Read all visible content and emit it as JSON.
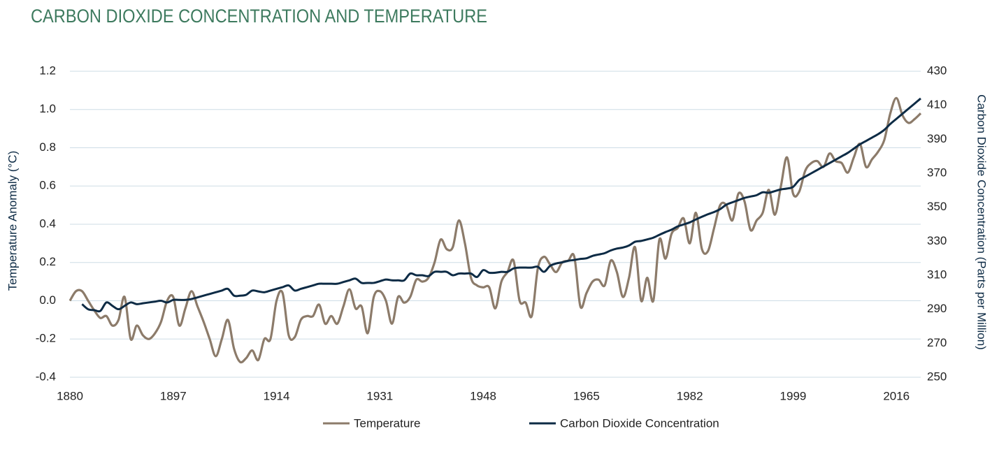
{
  "chart_data": {
    "type": "line",
    "title": "CARBON DIOXIDE CONCENTRATION AND TEMPERATURE",
    "y_label": "Temperature Anomaly (°C)",
    "y2_label": "Carbon Dioxide Concentration (Parts per Million)",
    "x": [
      1880,
      1881,
      1882,
      1883,
      1884,
      1885,
      1886,
      1887,
      1888,
      1889,
      1890,
      1891,
      1892,
      1893,
      1894,
      1895,
      1896,
      1897,
      1898,
      1899,
      1900,
      1901,
      1902,
      1903,
      1904,
      1905,
      1906,
      1907,
      1908,
      1909,
      1910,
      1911,
      1912,
      1913,
      1914,
      1915,
      1916,
      1917,
      1918,
      1919,
      1920,
      1921,
      1922,
      1923,
      1924,
      1925,
      1926,
      1927,
      1928,
      1929,
      1930,
      1931,
      1932,
      1933,
      1934,
      1935,
      1936,
      1937,
      1938,
      1939,
      1940,
      1941,
      1942,
      1943,
      1944,
      1945,
      1946,
      1947,
      1948,
      1949,
      1950,
      1951,
      1952,
      1953,
      1954,
      1955,
      1956,
      1957,
      1958,
      1959,
      1960,
      1961,
      1962,
      1963,
      1964,
      1965,
      1966,
      1967,
      1968,
      1969,
      1970,
      1971,
      1972,
      1973,
      1974,
      1975,
      1976,
      1977,
      1978,
      1979,
      1980,
      1981,
      1982,
      1983,
      1984,
      1985,
      1986,
      1987,
      1988,
      1989,
      1990,
      1991,
      1992,
      1993,
      1994,
      1995,
      1996,
      1997,
      1998,
      1999,
      2000,
      2001,
      2002,
      2003,
      2004,
      2005,
      2006,
      2007,
      2008,
      2009,
      2010,
      2011,
      2012,
      2013,
      2014,
      2015,
      2016,
      2017,
      2018,
      2019,
      2020
    ],
    "series": [
      {
        "name": "Temperature",
        "color": "#8c7b6a",
        "axis": "y",
        "values": [
          0.0,
          0.05,
          0.05,
          0.0,
          -0.05,
          -0.09,
          -0.08,
          -0.13,
          -0.1,
          0.02,
          -0.2,
          -0.13,
          -0.18,
          -0.2,
          -0.17,
          -0.11,
          0.0,
          0.02,
          -0.13,
          -0.04,
          0.05,
          -0.03,
          -0.11,
          -0.2,
          -0.29,
          -0.2,
          -0.1,
          -0.25,
          -0.32,
          -0.3,
          -0.26,
          -0.31,
          -0.2,
          -0.2,
          0.0,
          0.04,
          -0.18,
          -0.19,
          -0.1,
          -0.08,
          -0.08,
          -0.02,
          -0.12,
          -0.08,
          -0.12,
          -0.03,
          0.06,
          -0.04,
          -0.03,
          -0.17,
          0.02,
          0.05,
          0.0,
          -0.12,
          0.02,
          -0.01,
          0.02,
          0.11,
          0.1,
          0.12,
          0.2,
          0.32,
          0.27,
          0.28,
          0.42,
          0.3,
          0.12,
          0.08,
          0.07,
          0.07,
          -0.04,
          0.1,
          0.15,
          0.21,
          0.0,
          -0.01,
          -0.08,
          0.17,
          0.23,
          0.19,
          0.15,
          0.2,
          0.21,
          0.23,
          -0.03,
          0.04,
          0.1,
          0.11,
          0.08,
          0.21,
          0.15,
          0.02,
          0.12,
          0.28,
          0.0,
          0.12,
          0.0,
          0.32,
          0.22,
          0.35,
          0.38,
          0.43,
          0.3,
          0.46,
          0.27,
          0.26,
          0.38,
          0.5,
          0.5,
          0.42,
          0.56,
          0.52,
          0.37,
          0.42,
          0.46,
          0.58,
          0.45,
          0.6,
          0.75,
          0.56,
          0.57,
          0.68,
          0.72,
          0.73,
          0.7,
          0.77,
          0.73,
          0.72,
          0.67,
          0.75,
          0.82,
          0.7,
          0.74,
          0.78,
          0.84,
          0.98,
          1.06,
          0.97,
          0.93,
          0.95,
          0.98
        ]
      },
      {
        "name": "Carbon Dioxide Concentration",
        "color": "#0d2b45",
        "axis": "y2",
        "values": [
          null,
          null,
          293,
          290,
          289.5,
          289,
          294,
          292,
          290,
          292,
          294,
          293,
          293.5,
          294,
          294.5,
          295,
          294,
          295.5,
          295.5,
          295.5,
          296,
          297,
          298,
          299,
          300,
          301,
          302,
          298,
          298,
          298.5,
          301,
          300.5,
          300,
          301,
          302,
          303,
          304,
          301,
          302,
          303,
          304,
          305,
          305,
          305,
          305,
          306,
          307,
          308,
          305.5,
          305.5,
          305.5,
          306.5,
          307.5,
          307,
          307,
          307,
          311,
          310,
          310,
          309.5,
          312,
          312,
          312,
          310,
          311,
          311,
          311,
          309,
          313,
          311.5,
          311.5,
          312,
          312,
          314,
          314.5,
          314.5,
          314.5,
          315,
          312,
          315.5,
          316.9,
          317.6,
          318.5,
          319,
          319.6,
          320,
          321.4,
          322.2,
          323,
          324.6,
          325.7,
          326.3,
          327.5,
          329.7,
          330.2,
          331.1,
          332.1,
          333.8,
          335.4,
          336.8,
          338.7,
          339.9,
          341.1,
          342.8,
          344.4,
          345.9,
          347.2,
          348.9,
          351.5,
          352.9,
          354.2,
          355.5,
          356.3,
          357.1,
          358.8,
          358.5,
          359.5,
          360.5,
          361,
          362,
          366,
          368,
          370,
          372,
          374,
          376,
          378,
          380,
          382,
          384.5,
          387,
          389,
          391,
          393,
          395.5,
          399,
          402,
          405,
          408,
          411,
          414
        ]
      }
    ],
    "xlim": [
      1880,
      2020
    ],
    "xticks": [
      1880,
      1897,
      1914,
      1931,
      1948,
      1965,
      1982,
      1999,
      2016
    ],
    "ylim": [
      -0.4,
      1.2
    ],
    "yticks": [
      -0.4,
      -0.2,
      {
        "value": 0,
        "label": "0.0"
      },
      0.2,
      0.4,
      0.6,
      0.8,
      {
        "value": 1,
        "label": "1.0"
      },
      1.2
    ],
    "y2lim": [
      250,
      430
    ],
    "y2ticks": [
      250,
      270,
      290,
      310,
      330,
      350,
      370,
      390,
      410,
      430
    ],
    "grid": true,
    "legend": "bottom"
  }
}
